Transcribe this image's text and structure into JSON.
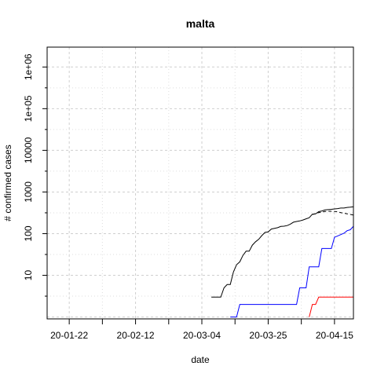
{
  "chart_data": {
    "type": "line",
    "title": "malta",
    "xlabel": "date",
    "ylabel": "# confirmed cases",
    "y_scale": "log",
    "grid": true,
    "x_ticks": [
      "20-01-22",
      "20-02-12",
      "20-03-04",
      "20-03-25",
      "20-04-15"
    ],
    "x_range": [
      "2020-01-15",
      "2020-04-21"
    ],
    "y_ticks": [
      "10",
      "100",
      "1000",
      "10000",
      "1e+05",
      "1e+06"
    ],
    "y_range": [
      0.9,
      3000000
    ],
    "colors": {
      "black_solid": "#000000",
      "black_dashed": "#000000",
      "blue": "#0000ff",
      "red": "#ff0000"
    },
    "series": [
      {
        "color": "black_solid",
        "style": "solid",
        "points": [
          [
            "2020-03-07",
            3
          ],
          [
            "2020-03-10",
            3
          ],
          [
            "2020-03-11",
            5
          ],
          [
            "2020-03-12",
            6
          ],
          [
            "2020-03-13",
            6
          ],
          [
            "2020-03-14",
            12
          ],
          [
            "2020-03-15",
            18
          ],
          [
            "2020-03-16",
            21
          ],
          [
            "2020-03-17",
            30
          ],
          [
            "2020-03-18",
            38
          ],
          [
            "2020-03-19",
            38
          ],
          [
            "2020-03-20",
            53
          ],
          [
            "2020-03-21",
            64
          ],
          [
            "2020-03-22",
            73
          ],
          [
            "2020-03-23",
            90
          ],
          [
            "2020-03-24",
            107
          ],
          [
            "2020-03-25",
            110
          ],
          [
            "2020-03-26",
            129
          ],
          [
            "2020-03-27",
            134
          ],
          [
            "2020-03-28",
            139
          ],
          [
            "2020-03-29",
            149
          ],
          [
            "2020-03-30",
            151
          ],
          [
            "2020-03-31",
            156
          ],
          [
            "2020-04-01",
            169
          ],
          [
            "2020-04-02",
            188
          ],
          [
            "2020-04-03",
            196
          ],
          [
            "2020-04-04",
            202
          ],
          [
            "2020-04-05",
            213
          ],
          [
            "2020-04-06",
            227
          ],
          [
            "2020-04-07",
            241
          ],
          [
            "2020-04-08",
            293
          ],
          [
            "2020-04-09",
            299
          ],
          [
            "2020-04-10",
            337
          ],
          [
            "2020-04-11",
            350
          ],
          [
            "2020-04-12",
            370
          ],
          [
            "2020-04-13",
            378
          ],
          [
            "2020-04-14",
            384
          ],
          [
            "2020-04-15",
            393
          ],
          [
            "2020-04-16",
            399
          ],
          [
            "2020-04-17",
            412
          ],
          [
            "2020-04-18",
            412
          ],
          [
            "2020-04-19",
            426
          ],
          [
            "2020-04-20",
            431
          ],
          [
            "2020-04-21",
            443
          ]
        ]
      },
      {
        "color": "black_dashed",
        "style": "dashed",
        "points": [
          [
            "2020-04-08",
            290
          ],
          [
            "2020-04-09",
            300
          ],
          [
            "2020-04-10",
            320
          ],
          [
            "2020-04-11",
            330
          ],
          [
            "2020-04-12",
            340
          ],
          [
            "2020-04-13",
            345
          ],
          [
            "2020-04-14",
            345
          ],
          [
            "2020-04-15",
            340
          ],
          [
            "2020-04-16",
            335
          ],
          [
            "2020-04-17",
            320
          ],
          [
            "2020-04-18",
            310
          ],
          [
            "2020-04-19",
            300
          ],
          [
            "2020-04-20",
            290
          ],
          [
            "2020-04-21",
            280
          ]
        ]
      },
      {
        "color": "blue",
        "style": "solid",
        "points": [
          [
            "2020-03-13",
            1
          ],
          [
            "2020-03-15",
            1
          ],
          [
            "2020-03-16",
            2
          ],
          [
            "2020-04-03",
            2
          ],
          [
            "2020-04-04",
            5
          ],
          [
            "2020-04-06",
            5
          ],
          [
            "2020-04-07",
            16
          ],
          [
            "2020-04-10",
            16
          ],
          [
            "2020-04-11",
            44
          ],
          [
            "2020-04-14",
            44
          ],
          [
            "2020-04-15",
            82
          ],
          [
            "2020-04-16",
            88
          ],
          [
            "2020-04-17",
            95
          ],
          [
            "2020-04-18",
            102
          ],
          [
            "2020-04-19",
            118
          ],
          [
            "2020-04-20",
            124
          ],
          [
            "2020-04-21",
            150
          ]
        ]
      },
      {
        "color": "red",
        "style": "solid",
        "points": [
          [
            "2020-04-07",
            1
          ],
          [
            "2020-04-08",
            2
          ],
          [
            "2020-04-09",
            2
          ],
          [
            "2020-04-10",
            3
          ],
          [
            "2020-04-21",
            3
          ]
        ]
      }
    ]
  }
}
